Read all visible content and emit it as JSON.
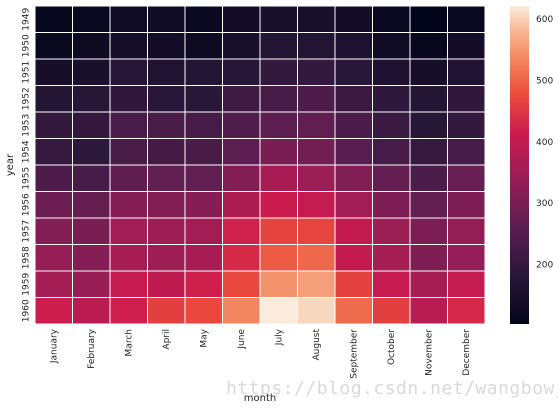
{
  "chart_data": {
    "type": "heatmap",
    "title": "",
    "xlabel": "month",
    "ylabel": "year",
    "x": [
      "January",
      "February",
      "March",
      "April",
      "May",
      "June",
      "July",
      "August",
      "September",
      "October",
      "November",
      "December"
    ],
    "y": [
      "1949",
      "1950",
      "1951",
      "1952",
      "1953",
      "1954",
      "1955",
      "1956",
      "1957",
      "1958",
      "1959",
      "1960"
    ],
    "values": [
      [
        112,
        118,
        132,
        129,
        121,
        135,
        148,
        148,
        136,
        119,
        104,
        118
      ],
      [
        115,
        126,
        141,
        135,
        125,
        149,
        170,
        170,
        158,
        133,
        114,
        140
      ],
      [
        145,
        150,
        178,
        163,
        172,
        178,
        199,
        199,
        184,
        162,
        146,
        166
      ],
      [
        171,
        180,
        193,
        181,
        183,
        218,
        230,
        242,
        209,
        191,
        172,
        194
      ],
      [
        196,
        196,
        236,
        235,
        229,
        243,
        264,
        272,
        237,
        211,
        180,
        201
      ],
      [
        204,
        188,
        235,
        227,
        234,
        264,
        302,
        293,
        259,
        229,
        203,
        229
      ],
      [
        242,
        233,
        267,
        269,
        270,
        315,
        364,
        347,
        312,
        274,
        237,
        278
      ],
      [
        284,
        277,
        317,
        313,
        318,
        374,
        413,
        405,
        355,
        306,
        271,
        306
      ],
      [
        315,
        301,
        356,
        348,
        355,
        422,
        465,
        467,
        404,
        347,
        305,
        336
      ],
      [
        340,
        318,
        362,
        348,
        363,
        435,
        491,
        505,
        404,
        359,
        310,
        337
      ],
      [
        360,
        342,
        406,
        396,
        420,
        472,
        548,
        559,
        463,
        407,
        362,
        405
      ],
      [
        417,
        391,
        419,
        461,
        472,
        535,
        622,
        606,
        508,
        461,
        390,
        432
      ]
    ],
    "colorbar": {
      "min": 104,
      "max": 622,
      "ticks": [
        200,
        300,
        400,
        500,
        600
      ]
    },
    "grid": false,
    "colormap": "rocket"
  },
  "watermark": "https://blog.csdn.net/wangbowj123"
}
